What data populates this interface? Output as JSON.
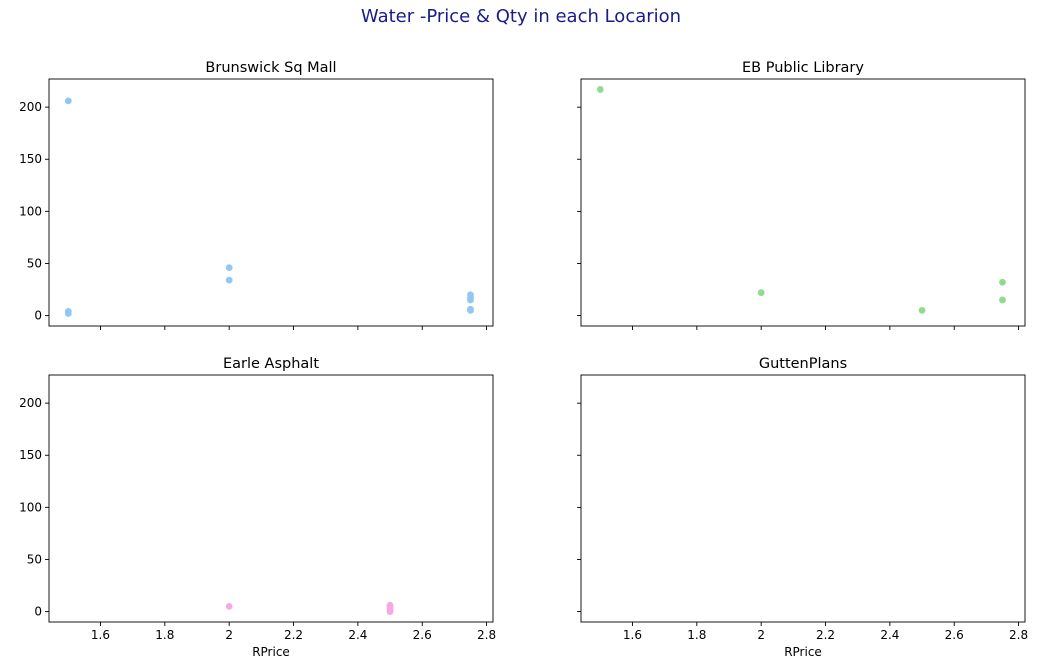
{
  "figure": {
    "title": "Water -Price & Qty in each Locarion",
    "title_color": "#1a1a8c"
  },
  "chart_data": [
    {
      "type": "scatter",
      "title": "Brunswick Sq Mall",
      "xlabel": "",
      "ylabel": "",
      "xlim": [
        1.44,
        2.82
      ],
      "ylim": [
        -10,
        227
      ],
      "x_ticks": [
        1.6,
        1.8,
        2.0,
        2.2,
        2.4,
        2.6,
        2.8
      ],
      "y_ticks": [
        0,
        50,
        100,
        150,
        200
      ],
      "show_x_tick_labels": false,
      "show_y_tick_labels": true,
      "grid": false,
      "color": "#92c6f7",
      "points": [
        {
          "x": 1.5,
          "y": 206
        },
        {
          "x": 1.5,
          "y": 4
        },
        {
          "x": 1.5,
          "y": 2
        },
        {
          "x": 2.0,
          "y": 46
        },
        {
          "x": 2.0,
          "y": 34
        },
        {
          "x": 2.75,
          "y": 20
        },
        {
          "x": 2.75,
          "y": 17
        },
        {
          "x": 2.75,
          "y": 15
        },
        {
          "x": 2.75,
          "y": 6
        },
        {
          "x": 2.75,
          "y": 5
        }
      ]
    },
    {
      "type": "scatter",
      "title": "EB Public Library",
      "xlabel": "",
      "ylabel": "",
      "xlim": [
        1.44,
        2.82
      ],
      "ylim": [
        -10,
        227
      ],
      "x_ticks": [
        1.6,
        1.8,
        2.0,
        2.2,
        2.4,
        2.6,
        2.8
      ],
      "y_ticks": [
        0,
        50,
        100,
        150,
        200
      ],
      "show_x_tick_labels": false,
      "show_y_tick_labels": false,
      "grid": false,
      "color": "#8fdc8f",
      "points": [
        {
          "x": 1.5,
          "y": 217
        },
        {
          "x": 2.0,
          "y": 22
        },
        {
          "x": 2.5,
          "y": 5
        },
        {
          "x": 2.75,
          "y": 32
        },
        {
          "x": 2.75,
          "y": 15
        }
      ]
    },
    {
      "type": "scatter",
      "title": "Earle Asphalt",
      "xlabel": "RPrice",
      "ylabel": "",
      "xlim": [
        1.44,
        2.82
      ],
      "ylim": [
        -10,
        227
      ],
      "x_ticks": [
        1.6,
        1.8,
        2.0,
        2.2,
        2.4,
        2.6,
        2.8
      ],
      "y_ticks": [
        0,
        50,
        100,
        150,
        200
      ],
      "show_x_tick_labels": true,
      "show_y_tick_labels": true,
      "grid": false,
      "color": "#f7a8e3",
      "points": [
        {
          "x": 2.0,
          "y": 5
        },
        {
          "x": 2.5,
          "y": 6
        },
        {
          "x": 2.5,
          "y": 4
        },
        {
          "x": 2.5,
          "y": 2
        },
        {
          "x": 2.5,
          "y": 0
        }
      ]
    },
    {
      "type": "scatter",
      "title": "GuttenPlans",
      "xlabel": "RPrice",
      "ylabel": "",
      "xlim": [
        1.44,
        2.82
      ],
      "ylim": [
        -10,
        227
      ],
      "x_ticks": [
        1.6,
        1.8,
        2.0,
        2.2,
        2.4,
        2.6,
        2.8
      ],
      "y_ticks": [
        0,
        50,
        100,
        150,
        200
      ],
      "show_x_tick_labels": true,
      "show_y_tick_labels": false,
      "grid": false,
      "color": "#f5b183",
      "points": []
    }
  ]
}
